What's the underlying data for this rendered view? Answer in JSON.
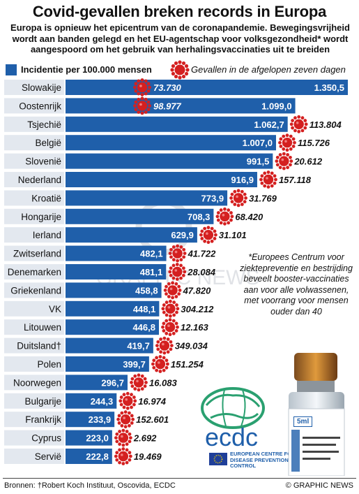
{
  "title": "Covid-gevallen breken records in Europa",
  "subtitle": "Europa is opnieuw het epicentrum van de coronapandemie. Bewegingsvrijheid wordt aan banden gelegd en het EU-agentschap voor volksgezondheid* wordt aangespoord om het gebruik van herhalingsvaccinaties uit te breiden",
  "legend": {
    "bar_label": "Incidentie per 100.000 mensen",
    "virus_label": "Gevallen in de afgelopen zeven dagen"
  },
  "note": "*Europees Centrum voor ziektepreventie en bestrijding beveelt booster-vaccinaties aan voor alle volwassenen, met voorrang voor mensen ouder dan 40",
  "ecdc": {
    "name": "ecdc",
    "agency": "EUROPEAN CENTRE FOR DISEASE PREVENTION AND CONTROL"
  },
  "vial": {
    "label": "5ml"
  },
  "watermark": "GRAPHIC NEWS",
  "footer": {
    "source": "Bronnen: †Robert Koch Instituut, Oscovida, ECDC",
    "credit": "© GRAPHIC NEWS"
  },
  "colors": {
    "bar": "#1f5faa",
    "virus": "#d42020"
  },
  "chart_data": {
    "type": "bar",
    "orientation": "horizontal",
    "categories": [
      "Slowakije",
      "Oostenrijk",
      "Tsjechië",
      "België",
      "Slovenië",
      "Nederland",
      "Kroatië",
      "Hongarije",
      "Ierland",
      "Zwitserland",
      "Denemarken",
      "Griekenland",
      "VK",
      "Litouwen",
      "Duitsland†",
      "Polen",
      "Noorwegen",
      "Bulgarije",
      "Frankrijk",
      "Cyprus",
      "Servië"
    ],
    "series": [
      {
        "name": "Incidentie per 100.000 mensen",
        "values": [
          1350.5,
          1099.0,
          1062.7,
          1007.0,
          991.5,
          916.9,
          773.9,
          708.3,
          629.9,
          482.1,
          481.1,
          458.8,
          448.1,
          446.8,
          419.7,
          399.7,
          296.7,
          244.3,
          233.9,
          223.0,
          222.8
        ],
        "labels": [
          "1.350,5",
          "1.099,0",
          "1.062,7",
          "1.007,0",
          "991,5",
          "916,9",
          "773,9",
          "708,3",
          "629,9",
          "482,1",
          "481,1",
          "458,8",
          "448,1",
          "446,8",
          "419,7",
          "399,7",
          "296,7",
          "244,3",
          "233,9",
          "223,0",
          "222,8"
        ]
      },
      {
        "name": "Gevallen in de afgelopen zeven dagen",
        "values": [
          73730,
          98977,
          113804,
          115726,
          20612,
          157118,
          31769,
          68420,
          31101,
          41722,
          28084,
          47820,
          304212,
          12163,
          349034,
          151254,
          16083,
          16974,
          152601,
          2692,
          19469
        ],
        "labels": [
          "73.730",
          "98.977",
          "113.804",
          "115.726",
          "20.612",
          "157.118",
          "31.769",
          "68.420",
          "31.101",
          "41.722",
          "28.084",
          "47.820",
          "304.212",
          "12.163",
          "349.034",
          "151.254",
          "16.083",
          "16.974",
          "152.601",
          "2.692",
          "19.469"
        ]
      }
    ],
    "legend_position": "top",
    "grid": false
  }
}
